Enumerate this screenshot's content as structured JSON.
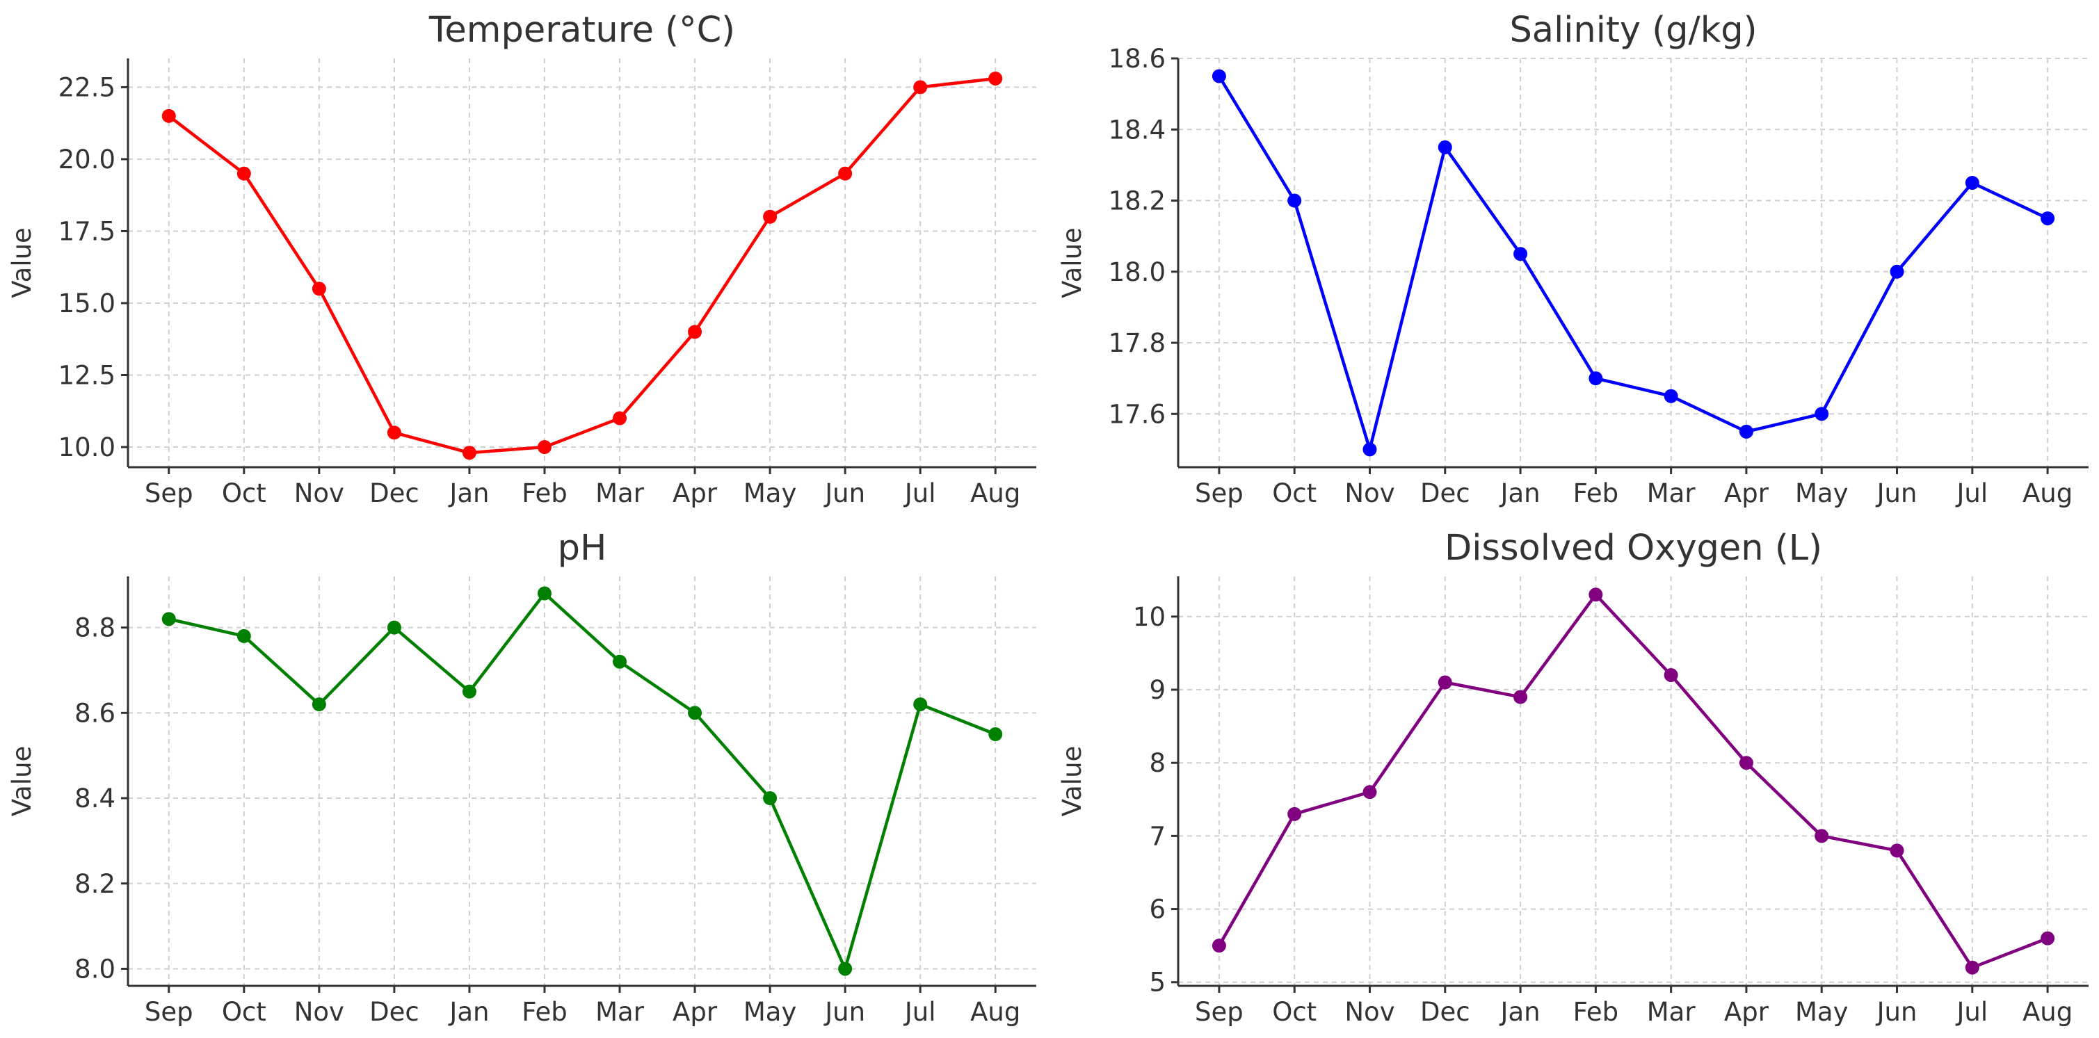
{
  "chart_data": [
    {
      "type": "line",
      "title": "Temperature (°C)",
      "ylabel": "Value",
      "xlabel": "",
      "categories": [
        "Sep",
        "Oct",
        "Nov",
        "Dec",
        "Jan",
        "Feb",
        "Mar",
        "Apr",
        "May",
        "Jun",
        "Jul",
        "Aug"
      ],
      "values": [
        21.5,
        19.5,
        15.5,
        10.5,
        9.8,
        10.0,
        11.0,
        14.0,
        18.0,
        19.5,
        22.5,
        22.8
      ],
      "ylim": [
        9.3,
        23.5
      ],
      "yticks": [
        10.0,
        12.5,
        15.0,
        17.5,
        20.0,
        22.5
      ],
      "ytick_labels": [
        "10.0",
        "12.5",
        "15.0",
        "17.5",
        "20.0",
        "22.5"
      ],
      "color": "#ff0000",
      "grid": true
    },
    {
      "type": "line",
      "title": "Salinity (g/kg)",
      "ylabel": "Value",
      "xlabel": "",
      "categories": [
        "Sep",
        "Oct",
        "Nov",
        "Dec",
        "Jan",
        "Feb",
        "Mar",
        "Apr",
        "May",
        "Jun",
        "Jul",
        "Aug"
      ],
      "values": [
        18.55,
        18.2,
        17.5,
        18.35,
        18.05,
        17.7,
        17.65,
        17.55,
        17.6,
        18.0,
        18.25,
        18.15
      ],
      "ylim": [
        17.45,
        18.6
      ],
      "yticks": [
        17.6,
        17.8,
        18.0,
        18.2,
        18.4,
        18.6
      ],
      "ytick_labels": [
        "17.6",
        "17.8",
        "18.0",
        "18.2",
        "18.4",
        "18.6"
      ],
      "color": "#0000ff",
      "grid": true
    },
    {
      "type": "line",
      "title": "pH",
      "ylabel": "Value",
      "xlabel": "",
      "categories": [
        "Sep",
        "Oct",
        "Nov",
        "Dec",
        "Jan",
        "Feb",
        "Mar",
        "Apr",
        "May",
        "Jun",
        "Jul",
        "Aug"
      ],
      "values": [
        8.82,
        8.78,
        8.62,
        8.8,
        8.65,
        8.88,
        8.72,
        8.6,
        8.4,
        8.0,
        8.62,
        8.55
      ],
      "ylim": [
        7.96,
        8.92
      ],
      "yticks": [
        8.0,
        8.2,
        8.4,
        8.6,
        8.8
      ],
      "ytick_labels": [
        "8.0",
        "8.2",
        "8.4",
        "8.6",
        "8.8"
      ],
      "color": "#008000",
      "grid": true
    },
    {
      "type": "line",
      "title": "Dissolved Oxygen (L)",
      "ylabel": "Value",
      "xlabel": "",
      "categories": [
        "Sep",
        "Oct",
        "Nov",
        "Dec",
        "Jan",
        "Feb",
        "Mar",
        "Apr",
        "May",
        "Jun",
        "Jul",
        "Aug"
      ],
      "values": [
        5.5,
        7.3,
        7.6,
        9.1,
        8.9,
        10.3,
        9.2,
        8.0,
        7.0,
        6.8,
        5.2,
        5.6
      ],
      "ylim": [
        4.95,
        10.55
      ],
      "yticks": [
        5,
        6,
        7,
        8,
        9,
        10
      ],
      "ytick_labels": [
        "5",
        "6",
        "7",
        "8",
        "9",
        "10"
      ],
      "color": "#800080",
      "grid": true
    }
  ]
}
